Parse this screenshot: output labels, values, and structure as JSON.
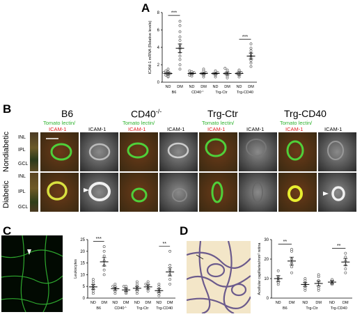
{
  "panels": {
    "A": "A",
    "B": "B",
    "C": "C",
    "D": "D"
  },
  "panelB": {
    "columns": [
      "B6",
      "CD40-/-",
      "Trg-Ctr",
      "Trg-CD40"
    ],
    "tomato_label": "Tomato lectin/",
    "icam_red": "ICAM-1",
    "icam_gray": "ICAM-1",
    "row_labels": [
      "Nondiabetic",
      "Diabetic"
    ],
    "layers": [
      "INL",
      "IPL",
      "GCL"
    ]
  },
  "chart_data": [
    {
      "id": "A",
      "type": "scatter",
      "ylabel": "ICAM-1 mRNA (Relative levels)",
      "ylim": [
        0,
        8
      ],
      "yticks": [
        0,
        2,
        4,
        6,
        8
      ],
      "x_sub": [
        "ND",
        "DM",
        "ND",
        "DM",
        "ND",
        "DM",
        "ND",
        "DM"
      ],
      "groups": [
        "B6",
        "CD40-/-",
        "Trg-Ctr",
        "Trg-CD40"
      ],
      "means": [
        1.0,
        3.9,
        1.0,
        1.0,
        1.0,
        1.0,
        1.0,
        3.0
      ],
      "sem": [
        0.15,
        0.5,
        0.1,
        0.1,
        0.1,
        0.15,
        0.15,
        0.35
      ],
      "points": [
        [
          0.6,
          0.7,
          0.8,
          0.9,
          1.0,
          1.0,
          1.1,
          1.2,
          1.3,
          1.5
        ],
        [
          1.5,
          2.0,
          2.6,
          3.0,
          3.4,
          3.8,
          4.0,
          4.3,
          4.8,
          5.2,
          5.8,
          6.5,
          7.0
        ],
        [
          0.7,
          0.8,
          0.9,
          1.0,
          1.1,
          1.2,
          1.3
        ],
        [
          0.6,
          0.8,
          0.9,
          1.0,
          1.1,
          1.3,
          1.5
        ],
        [
          0.6,
          0.8,
          0.9,
          1.0,
          1.1,
          1.3
        ],
        [
          0.5,
          0.7,
          0.9,
          1.0,
          1.2,
          1.4,
          1.6
        ],
        [
          0.6,
          0.8,
          0.9,
          1.0,
          1.1,
          1.3,
          1.4
        ],
        [
          1.8,
          2.2,
          2.5,
          2.8,
          3.0,
          3.3,
          3.6,
          3.9,
          4.4
        ]
      ],
      "sig": [
        {
          "pair": 0,
          "label": "***"
        },
        {
          "pair": 3,
          "label": "***"
        }
      ]
    },
    {
      "id": "C",
      "type": "scatter",
      "ylabel": "Leukocytes",
      "ylim": [
        0,
        25
      ],
      "yticks": [
        0,
        5,
        10,
        15,
        20,
        25
      ],
      "x_sub": [
        "ND",
        "DM",
        "ND",
        "DM",
        "ND",
        "DM",
        "ND",
        "DM"
      ],
      "groups": [
        "B6",
        "CD40-/-",
        "Trg-Ctr",
        "Trg-CD40"
      ],
      "means": [
        4.8,
        15.5,
        4.0,
        3.5,
        4.2,
        4.8,
        3.2,
        11.2
      ],
      "sem": [
        1.0,
        1.8,
        0.7,
        0.7,
        0.8,
        0.9,
        0.8,
        1.7
      ],
      "points": [
        [
          2,
          3,
          4,
          5,
          6,
          7,
          8
        ],
        [
          10,
          12,
          14,
          16,
          18,
          20,
          22
        ],
        [
          2,
          3,
          4,
          5,
          5,
          6
        ],
        [
          2,
          2.5,
          3,
          4,
          5,
          5
        ],
        [
          2,
          3,
          4,
          5,
          6,
          7
        ],
        [
          3,
          4,
          5,
          6,
          6,
          7
        ],
        [
          1,
          2,
          3,
          4,
          5,
          6
        ],
        [
          6,
          8,
          10,
          12,
          14,
          20
        ]
      ],
      "sig": [
        {
          "pair": 0,
          "label": "***"
        },
        {
          "pair": 3,
          "label": "**"
        }
      ]
    },
    {
      "id": "D",
      "type": "scatter",
      "ylabel": "Acellular capillaries/mm² retina",
      "ylim": [
        0,
        30
      ],
      "yticks": [
        0,
        10,
        20,
        30
      ],
      "x_sub": [
        "ND",
        "DM",
        "ND",
        "DM",
        "ND",
        "DM"
      ],
      "groups": [
        "B6",
        "Trg-Ctr",
        "Trg-CD40"
      ],
      "means": [
        10.0,
        19.0,
        7.0,
        7.5,
        8.2,
        18.5
      ],
      "sem": [
        1.5,
        2.0,
        1.0,
        1.2,
        0.8,
        1.8
      ],
      "points": [
        [
          7,
          8,
          9,
          10,
          11,
          14
        ],
        [
          13,
          16,
          18,
          20,
          24,
          25
        ],
        [
          4,
          5,
          6,
          7,
          8,
          9,
          10
        ],
        [
          4,
          5,
          6,
          8,
          9,
          11,
          12
        ],
        [
          7,
          7.5,
          8,
          8.5,
          9,
          9.5
        ],
        [
          13,
          15,
          17,
          19,
          21,
          23
        ]
      ],
      "sig": [
        {
          "pair": 0,
          "label": "**"
        },
        {
          "pair": 2,
          "label": "**"
        }
      ]
    }
  ]
}
